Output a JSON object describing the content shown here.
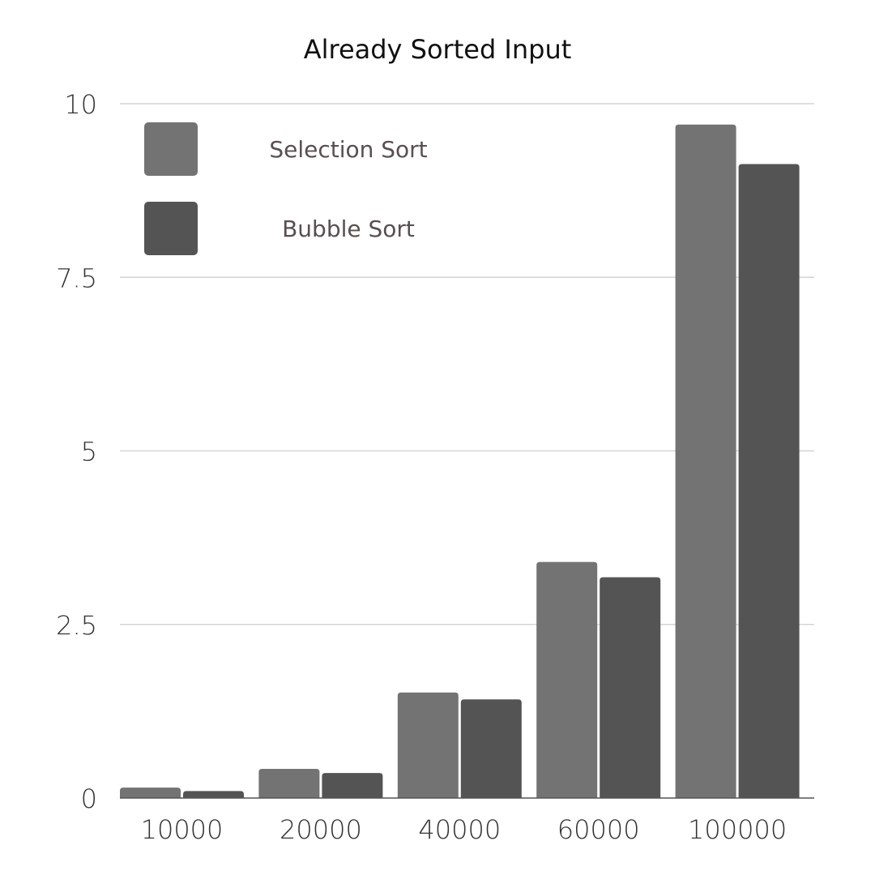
{
  "chart_data": {
    "type": "bar",
    "title": "Already Sorted Input",
    "xlabel": "",
    "ylabel": "",
    "categories": [
      "10000",
      "20000",
      "40000",
      "60000",
      "100000"
    ],
    "series": [
      {
        "name": "Selection Sort",
        "values": [
          0.15,
          0.42,
          1.52,
          3.4,
          9.7
        ],
        "color": "#737373"
      },
      {
        "name": "Bubble Sort",
        "values": [
          0.1,
          0.36,
          1.42,
          3.18,
          9.13
        ],
        "color": "#545454"
      }
    ],
    "ylim": [
      0,
      10
    ],
    "yticks": [
      0,
      2.5,
      5,
      7.5,
      10
    ],
    "ytick_labels": [
      "0",
      "2.5",
      "5",
      "7.5",
      "10"
    ],
    "grid": true,
    "legend_position": "top-left"
  }
}
